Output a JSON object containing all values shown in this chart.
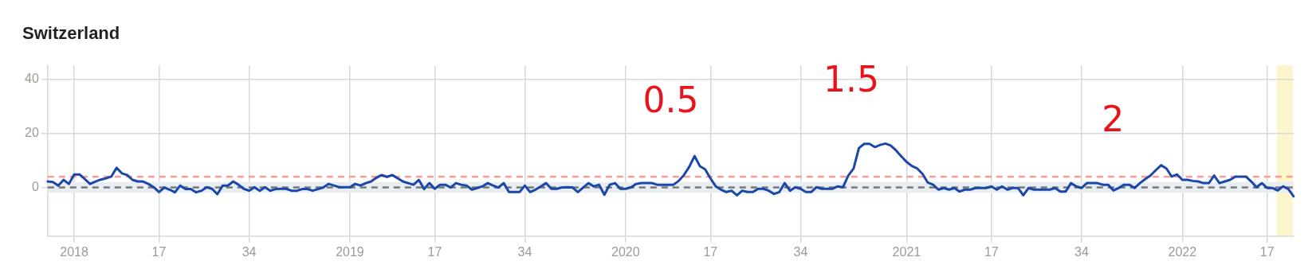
{
  "chart_data": {
    "type": "line",
    "title": "Switzerland",
    "categories": [
      null,
      null,
      null,
      null,
      null,
      "2018",
      null,
      null,
      null,
      null,
      null,
      null,
      null,
      null,
      null,
      null,
      null,
      null,
      null,
      null,
      null,
      "17",
      null,
      null,
      null,
      null,
      null,
      null,
      null,
      null,
      null,
      null,
      null,
      null,
      null,
      null,
      null,
      null,
      "34",
      null,
      null,
      null,
      null,
      null,
      null,
      null,
      null,
      null,
      null,
      null,
      null,
      null,
      null,
      null,
      null,
      null,
      null,
      "2019",
      null,
      null,
      null,
      null,
      null,
      null,
      null,
      null,
      null,
      null,
      null,
      null,
      null,
      null,
      null,
      "17",
      null,
      null,
      null,
      null,
      null,
      null,
      null,
      null,
      null,
      null,
      null,
      null,
      null,
      null,
      null,
      null,
      "34",
      null,
      null,
      null,
      null,
      null,
      null,
      null,
      null,
      null,
      null,
      null,
      null,
      null,
      null,
      null,
      null,
      null,
      null,
      "2020",
      null,
      null,
      null,
      null,
      null,
      null,
      null,
      null,
      null,
      null,
      null,
      null,
      null,
      null,
      null,
      "17",
      null,
      null,
      null,
      null,
      null,
      null,
      null,
      null,
      null,
      null,
      null,
      null,
      null,
      null,
      null,
      null,
      "34",
      null,
      null,
      null,
      null,
      null,
      null,
      null,
      null,
      null,
      null,
      null,
      null,
      null,
      null,
      null,
      null,
      null,
      null,
      null,
      "2021",
      null,
      null,
      null,
      null,
      null,
      null,
      null,
      null,
      null,
      null,
      null,
      null,
      null,
      null,
      null,
      "17",
      null,
      null,
      null,
      null,
      null,
      null,
      null,
      null,
      null,
      null,
      null,
      null,
      null,
      null,
      null,
      null,
      "34",
      null,
      null,
      null,
      null,
      null,
      null,
      null,
      null,
      null,
      null,
      null,
      null,
      null,
      null,
      null,
      null,
      null,
      null,
      "2022",
      null,
      null,
      null,
      null,
      null,
      null,
      null,
      null,
      null,
      null,
      null,
      null,
      null,
      null,
      null,
      "17",
      null,
      null,
      null,
      null,
      null
    ],
    "series": [
      {
        "color": "#1a47a8",
        "values": [
          2.2,
          2,
          0.7,
          2.8,
          1.3,
          4.8,
          4.8,
          3.1,
          1.3,
          2.2,
          2.9,
          3.4,
          4,
          7.3,
          5.2,
          4.6,
          2.8,
          2.2,
          2.2,
          1.3,
          0.1,
          -1.7,
          0,
          -0.8,
          -1.8,
          0.7,
          -0.6,
          -0.6,
          -1.8,
          -1.2,
          0.1,
          -0.5,
          -2.5,
          0.7,
          0.7,
          2.2,
          1,
          -0.5,
          -1.2,
          0.1,
          -1.2,
          0.1,
          -1.2,
          -0.6,
          -0.5,
          -0.5,
          -1.2,
          -1.2,
          -0.6,
          -0.6,
          -1.2,
          -0.6,
          0,
          1.3,
          0.7,
          0.1,
          0.1,
          0.1,
          1.3,
          0.7,
          1.6,
          2.2,
          3.6,
          4.6,
          3.9,
          4.6,
          3.4,
          2.2,
          1.6,
          1,
          2.8,
          -0.6,
          1.6,
          -0.5,
          1,
          1,
          0,
          1.6,
          1,
          0.7,
          -0.8,
          -0.2,
          0.4,
          1.6,
          0.7,
          0,
          1.6,
          -1.7,
          -1.7,
          -1.7,
          0.7,
          -1.7,
          -0.8,
          0.4,
          1.6,
          -0.5,
          -0.5,
          0,
          0.1,
          0,
          -1.7,
          0,
          1.6,
          0.4,
          1,
          -2.7,
          1,
          1.6,
          -0.5,
          -0.5,
          0,
          1.3,
          1.6,
          1.6,
          1.6,
          1,
          1,
          1,
          1,
          2.4,
          4.6,
          7.6,
          11.6,
          7.9,
          6.7,
          3.4,
          0.4,
          -0.8,
          -1.7,
          -1.2,
          -2.9,
          -1.2,
          -1.7,
          -1.7,
          -0.5,
          -0.5,
          -1.2,
          -2.4,
          -1.7,
          1.6,
          -1.2,
          0.1,
          -0.5,
          -1.7,
          -1.7,
          0.1,
          -0.5,
          -0.5,
          -0.5,
          0.4,
          0.1,
          4.4,
          7,
          14.5,
          16.1,
          16.1,
          14.9,
          15.7,
          16.2,
          15.5,
          13.7,
          11.5,
          9.4,
          7.9,
          7,
          5,
          1.8,
          1,
          -0.8,
          -0.2,
          -0.8,
          -0.2,
          -1.5,
          -0.8,
          -0.8,
          -0.2,
          -0.2,
          -0.2,
          0.4,
          -0.8,
          0.4,
          -0.8,
          -0.2,
          -0.2,
          -2.9,
          -0.2,
          -0.8,
          -0.8,
          -0.8,
          -0.8,
          -0.2,
          -1.5,
          -1.5,
          1.6,
          0.4,
          -0.2,
          1.6,
          1.6,
          1.6,
          1,
          1,
          -1.1,
          -0.2,
          1,
          1,
          -0.2,
          1.6,
          3.1,
          4.4,
          6.4,
          8.2,
          7,
          4,
          4.8,
          2.8,
          2.8,
          2.4,
          2.2,
          1.6,
          1.6,
          4.4,
          1.6,
          2.2,
          2.8,
          4,
          4,
          4,
          2.2,
          0.1,
          1.6,
          -0.2,
          -0.2,
          -1.1,
          0.4,
          -0.6,
          -3.3
        ]
      }
    ],
    "ylim": [
      -18,
      45
    ],
    "yticks": [
      0,
      20,
      40
    ],
    "grid": true,
    "marker": "none",
    "line_style": "solid",
    "legend": false,
    "ref_lines": [
      {
        "axis": "y",
        "value": 4,
        "color": "#ff9a9a",
        "line_style": "dashed"
      },
      {
        "axis": "y",
        "value": 0,
        "color": "#777777",
        "line_style": "dashed"
      }
    ],
    "bands": [
      {
        "axis": "y",
        "from": -2,
        "to": 2,
        "color": "#e8edf2"
      }
    ],
    "annotations": [
      "0.5",
      "1.5",
      "2"
    ]
  }
}
